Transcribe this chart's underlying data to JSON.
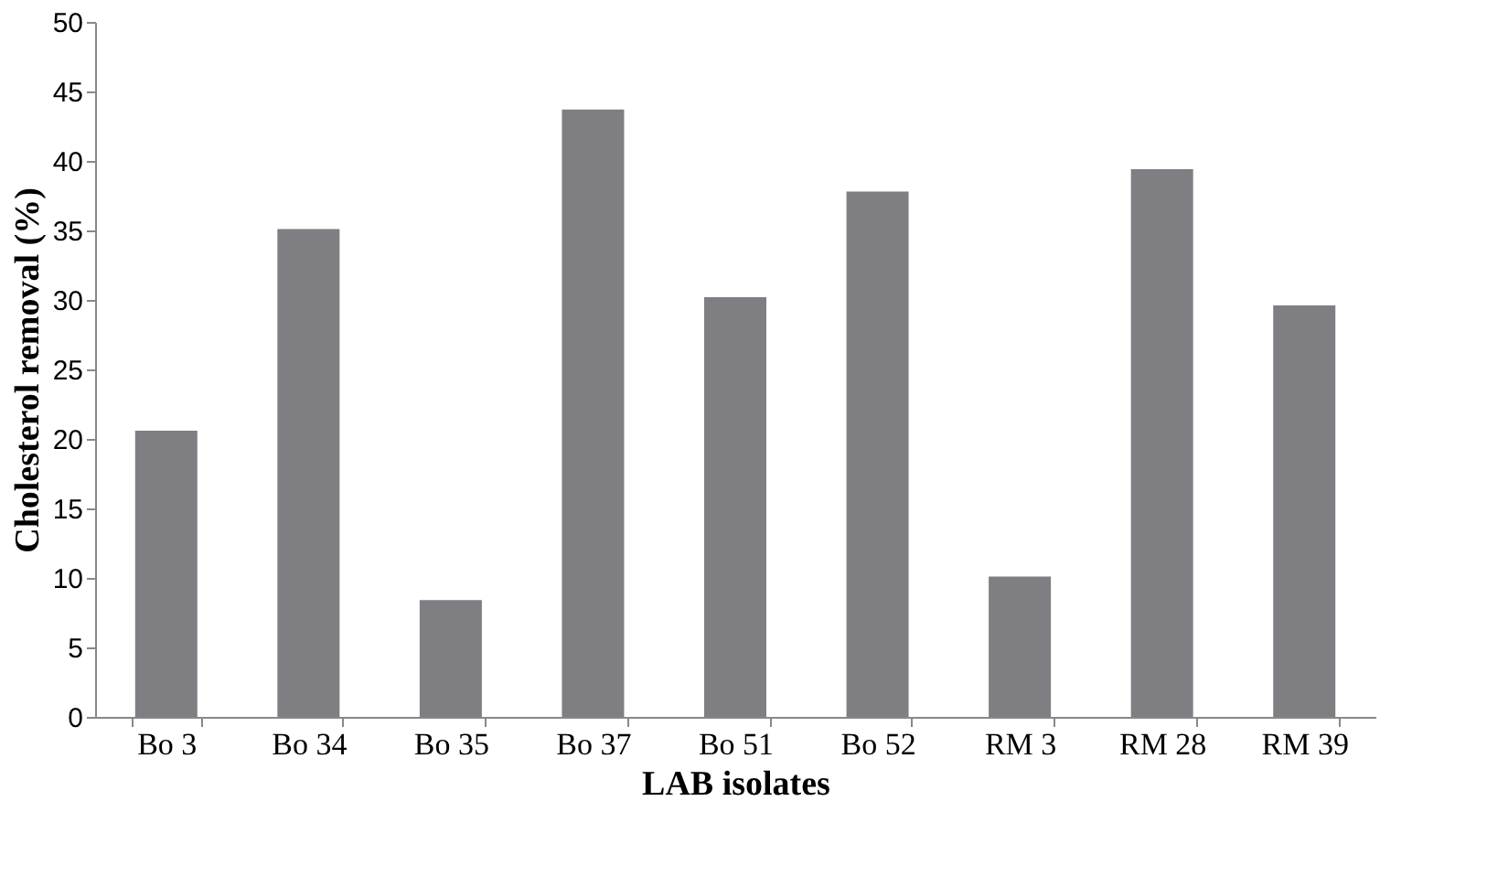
{
  "chart_data": {
    "type": "bar",
    "xlabel": "LAB isolates",
    "ylabel": "Cholesterol removal (%)",
    "categories": [
      "Bo 3",
      "Bo 34",
      "Bo 35",
      "Bo 37",
      "Bo 51",
      "Bo 52",
      "RM 3",
      "RM 28",
      "RM 39"
    ],
    "values": [
      20.6,
      35.1,
      8.4,
      43.7,
      30.2,
      37.8,
      10.1,
      39.4,
      29.6
    ],
    "color": "#7f7f83",
    "ylim": [
      0,
      50
    ],
    "yticks": [
      0,
      5,
      10,
      15,
      20,
      25,
      30,
      35,
      40,
      45,
      50
    ],
    "grid": false
  }
}
